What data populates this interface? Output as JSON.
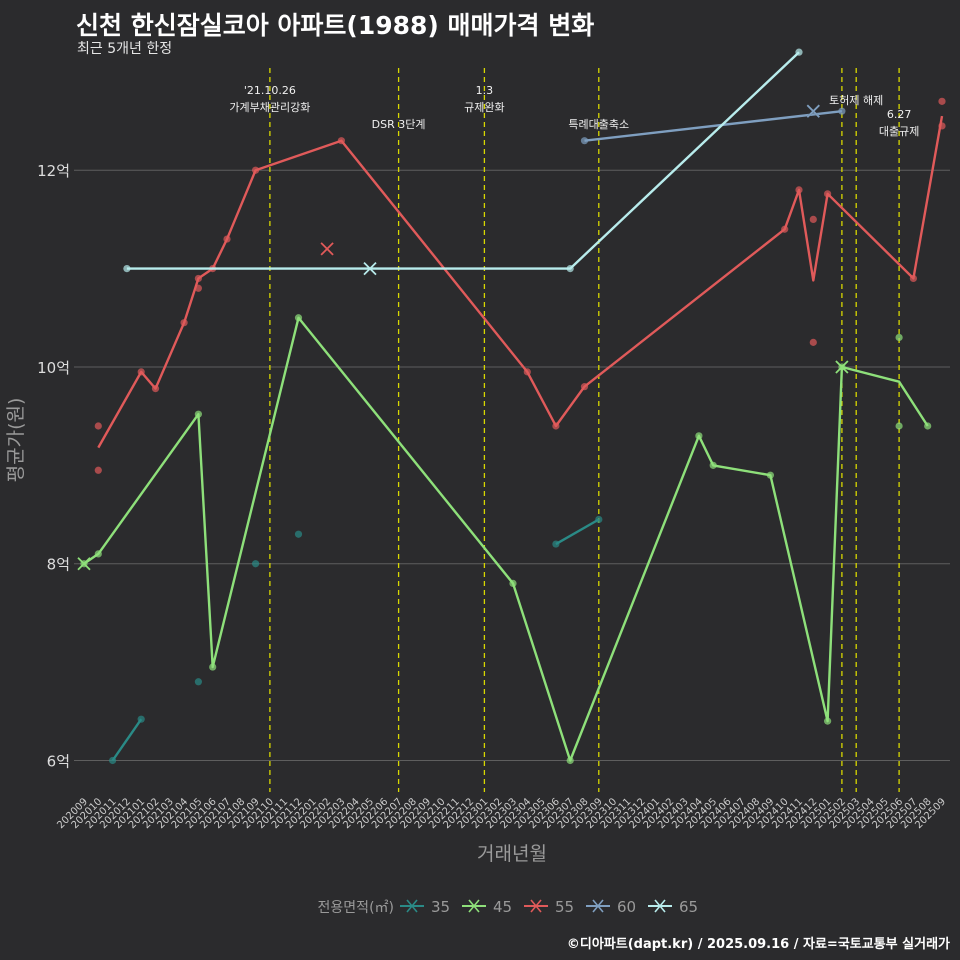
{
  "title": "신천 한신잠실코아 아파트(1988) 매매가격 변화",
  "subtitle": "최근 5개년 한정",
  "caption": "©디아파트(dapt.kr) / 2025.09.16 / 자료=국토교통부 실거래가",
  "chart_data": {
    "type": "line",
    "xlabel": "거래년월",
    "ylabel": "평균가(원)",
    "ylim": [
      5.7,
      13.1
    ],
    "yticks": [
      {
        "value": 6,
        "label": "6억"
      },
      {
        "value": 8,
        "label": "8억"
      },
      {
        "value": 10,
        "label": "10억"
      },
      {
        "value": 12,
        "label": "12억"
      }
    ],
    "x_categories": [
      "202009",
      "202010",
      "202011",
      "202012",
      "202101",
      "202102",
      "202103",
      "202104",
      "202105",
      "202106",
      "202107",
      "202108",
      "202109",
      "202110",
      "202111",
      "202112",
      "202201",
      "202202",
      "202203",
      "202204",
      "202205",
      "202206",
      "202207",
      "202208",
      "202209",
      "202210",
      "202211",
      "202212",
      "202301",
      "202302",
      "202303",
      "202304",
      "202305",
      "202306",
      "202307",
      "202308",
      "202309",
      "202310",
      "202311",
      "202312",
      "202401",
      "202402",
      "202403",
      "202404",
      "202405",
      "202406",
      "202407",
      "202408",
      "202409",
      "202410",
      "202411",
      "202412",
      "202501",
      "202502",
      "202503",
      "202504",
      "202505",
      "202506",
      "202507",
      "202508",
      "202509"
    ],
    "legend": {
      "title": "전용면적(㎡)",
      "position": "bottom"
    },
    "series": [
      {
        "name": "35",
        "color": "#2a8a86",
        "line": [
          [
            "202011",
            6.0
          ],
          [
            "202101",
            6.42
          ]
        ],
        "line2": [
          [
            "202306",
            8.2
          ],
          [
            "202309",
            8.45
          ]
        ],
        "points": [
          [
            "202011",
            6.0
          ],
          [
            "202101",
            6.42
          ],
          [
            "202105",
            6.8
          ],
          [
            "202109",
            8.0
          ],
          [
            "202112",
            8.3
          ],
          [
            "202306",
            8.2
          ],
          [
            "202309",
            8.45
          ]
        ],
        "marker": null
      },
      {
        "name": "45",
        "color": "#8ee07a",
        "line": [
          [
            "202009",
            8.0
          ],
          [
            "202010",
            8.1
          ],
          [
            "202105",
            9.52
          ],
          [
            "202106",
            6.95
          ],
          [
            "202112",
            10.5
          ],
          [
            "202303",
            7.8
          ],
          [
            "202307",
            6.0
          ],
          [
            "202404",
            9.3
          ],
          [
            "202405",
            9.0
          ],
          [
            "202409",
            8.9
          ],
          [
            "202501",
            6.4
          ],
          [
            "202502",
            10.0
          ],
          [
            "202506",
            9.85
          ],
          [
            "202508",
            9.4
          ]
        ],
        "points": [
          [
            "202009",
            8.0
          ],
          [
            "202010",
            8.1
          ],
          [
            "202105",
            9.52
          ],
          [
            "202106",
            6.95
          ],
          [
            "202112",
            10.5
          ],
          [
            "202303",
            7.8
          ],
          [
            "202307",
            6.0
          ],
          [
            "202404",
            9.3
          ],
          [
            "202405",
            9.0
          ],
          [
            "202409",
            8.9
          ],
          [
            "202501",
            6.4
          ],
          [
            "202502",
            10.0
          ],
          [
            "202506",
            10.3
          ],
          [
            "202506",
            9.4
          ],
          [
            "202508",
            9.4
          ]
        ],
        "marker": [
          "202009",
          8.0
        ],
        "marker2": [
          "202502",
          10.0
        ]
      },
      {
        "name": "55",
        "color": "#e05a5a",
        "line": [
          [
            "202010",
            9.18
          ],
          [
            "202101",
            9.95
          ],
          [
            "202102",
            9.78
          ],
          [
            "202104",
            10.45
          ],
          [
            "202105",
            10.9
          ],
          [
            "202106",
            11.0
          ],
          [
            "202107",
            11.3
          ],
          [
            "202109",
            12.0
          ],
          [
            "202203",
            12.3
          ],
          [
            "202304",
            9.95
          ],
          [
            "202306",
            9.4
          ],
          [
            "202308",
            9.8
          ],
          [
            "202410",
            11.4
          ],
          [
            "202411",
            11.8
          ],
          [
            "202412",
            10.88
          ],
          [
            "202501",
            11.76
          ],
          [
            "202507",
            10.9
          ],
          [
            "202509",
            12.55
          ]
        ],
        "points": [
          [
            "202010",
            9.4
          ],
          [
            "202010",
            8.95
          ],
          [
            "202101",
            9.95
          ],
          [
            "202102",
            9.78
          ],
          [
            "202104",
            10.45
          ],
          [
            "202105",
            10.8
          ],
          [
            "202105",
            10.9
          ],
          [
            "202106",
            11.0
          ],
          [
            "202107",
            11.3
          ],
          [
            "202109",
            12.0
          ],
          [
            "202203",
            12.3
          ],
          [
            "202304",
            9.95
          ],
          [
            "202306",
            9.4
          ],
          [
            "202308",
            9.8
          ],
          [
            "202410",
            11.4
          ],
          [
            "202411",
            11.8
          ],
          [
            "202412",
            11.5
          ],
          [
            "202412",
            10.25
          ],
          [
            "202501",
            11.76
          ],
          [
            "202507",
            10.9
          ],
          [
            "202509",
            12.7
          ],
          [
            "202509",
            12.45
          ]
        ],
        "marker": [
          "202202",
          11.2
        ]
      },
      {
        "name": "60",
        "color": "#7f9fc0",
        "line": [
          [
            "202308",
            12.3
          ],
          [
            "202502",
            12.6
          ]
        ],
        "points": [
          [
            "202308",
            12.3
          ],
          [
            "202502",
            12.6
          ]
        ],
        "marker": [
          "202412",
          12.6
        ]
      },
      {
        "name": "65",
        "color": "#b8ecec",
        "line": [
          [
            "202012",
            11.0
          ],
          [
            "202307",
            11.0
          ],
          [
            "202411",
            13.2
          ]
        ],
        "points": [
          [
            "202012",
            11.0
          ],
          [
            "202307",
            11.0
          ],
          [
            "202411",
            13.2
          ]
        ],
        "marker": [
          "202205",
          11.0
        ]
      }
    ],
    "events": [
      {
        "x": "202110",
        "lines": [
          "'21.10.26",
          "가계부채관리강화"
        ],
        "row": 0
      },
      {
        "x": "202207",
        "lines": [
          "DSR 3단계"
        ],
        "row": 1
      },
      {
        "x": "202301",
        "lines": [
          "1.3",
          "규제완화"
        ],
        "row": 0
      },
      {
        "x": "202309",
        "lines": [
          "특례대출축소"
        ],
        "row": 1
      },
      {
        "x": "202502",
        "lines": [],
        "row": 0
      },
      {
        "x": "202503",
        "lines": [
          "토허제 해제"
        ],
        "row": 0
      },
      {
        "x": "202506",
        "lines": [
          "6.27",
          "대출규제"
        ],
        "row": 0
      }
    ],
    "event_line_color": "#d8d800",
    "grid": true
  }
}
